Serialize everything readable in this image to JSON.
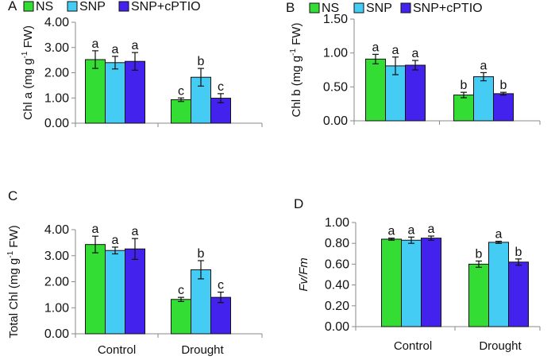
{
  "figure": {
    "legend": {
      "entries": [
        {
          "label": "NS",
          "color": "#33DD33"
        },
        {
          "label": "SNP",
          "color": "#44CCF5"
        },
        {
          "label": "SNP+cPTIO",
          "color": "#4422EE"
        }
      ]
    }
  },
  "chart_data": [
    {
      "panel": "A",
      "type": "bar",
      "ylabel": "Chl a (mg g-1 FW)",
      "ylabel_base": "Chl a (mg g",
      "ylabel_sup": "-1",
      "ylabel_tail": " FW)",
      "ylabel_italic": false,
      "ylim": [
        0,
        4
      ],
      "yticks": [
        "0.00",
        "1.00",
        "2.00",
        "3.00",
        "4.00"
      ],
      "categories": [
        "Control",
        "Drought"
      ],
      "show_xlabels": false,
      "legend": true,
      "series": [
        {
          "name": "NS",
          "values": [
            2.52,
            0.93
          ],
          "errors": [
            0.35,
            0.07
          ],
          "letters": [
            "a",
            "c"
          ]
        },
        {
          "name": "SNP",
          "values": [
            2.4,
            1.82
          ],
          "errors": [
            0.25,
            0.35
          ],
          "letters": [
            "a",
            "b"
          ]
        },
        {
          "name": "SNP+cPTIO",
          "values": [
            2.45,
            0.99
          ],
          "errors": [
            0.35,
            0.18
          ],
          "letters": [
            "a",
            "c"
          ]
        }
      ]
    },
    {
      "panel": "B",
      "type": "bar",
      "ylabel": "Chl b (mg g-1 FW)",
      "ylabel_base": "Chl b (mg g",
      "ylabel_sup": "-1",
      "ylabel_tail": " FW)",
      "ylabel_italic": false,
      "ylim": [
        0,
        1.5
      ],
      "yticks": [
        "0.00",
        "0.50",
        "1.00",
        "1.50"
      ],
      "categories": [
        "Control",
        "Drought"
      ],
      "show_xlabels": false,
      "legend": true,
      "series": [
        {
          "name": "NS",
          "values": [
            0.91,
            0.38
          ],
          "errors": [
            0.07,
            0.04
          ],
          "letters": [
            "a",
            "b"
          ]
        },
        {
          "name": "SNP",
          "values": [
            0.81,
            0.65
          ],
          "errors": [
            0.13,
            0.06
          ],
          "letters": [
            "a",
            "a"
          ]
        },
        {
          "name": "SNP+cPTIO",
          "values": [
            0.82,
            0.4
          ],
          "errors": [
            0.07,
            0.02
          ],
          "letters": [
            "a",
            "b"
          ]
        }
      ]
    },
    {
      "panel": "C",
      "type": "bar",
      "ylabel": "Total Chl (mg g-1 FW)",
      "ylabel_base": "Total Chl (mg g",
      "ylabel_sup": "-1",
      "ylabel_tail": " FW)",
      "ylabel_italic": false,
      "ylim": [
        0,
        4
      ],
      "yticks": [
        "0.00",
        "1.00",
        "2.00",
        "3.00",
        "4.00"
      ],
      "categories": [
        "Control",
        "Drought"
      ],
      "show_xlabels": true,
      "legend": false,
      "series": [
        {
          "name": "NS",
          "values": [
            3.43,
            1.32
          ],
          "errors": [
            0.32,
            0.08
          ],
          "letters": [
            "a",
            "c"
          ]
        },
        {
          "name": "SNP",
          "values": [
            3.2,
            2.46
          ],
          "errors": [
            0.13,
            0.35
          ],
          "letters": [
            "a",
            "b"
          ]
        },
        {
          "name": "SNP+cPTIO",
          "values": [
            3.26,
            1.4
          ],
          "errors": [
            0.4,
            0.2
          ],
          "letters": [
            "a",
            "c"
          ]
        }
      ]
    },
    {
      "panel": "D",
      "type": "bar",
      "ylabel": "Fv/Fm",
      "ylabel_base": "Fv/Fm",
      "ylabel_sup": "",
      "ylabel_tail": "",
      "ylabel_italic": true,
      "ylim": [
        0,
        1
      ],
      "yticks": [
        "0.00",
        "0.20",
        "0.40",
        "0.60",
        "0.80",
        "1.00"
      ],
      "categories": [
        "Control",
        "Drought"
      ],
      "show_xlabels": true,
      "legend": false,
      "series": [
        {
          "name": "NS",
          "values": [
            0.84,
            0.6
          ],
          "errors": [
            0.01,
            0.03
          ],
          "letters": [
            "a",
            "b"
          ]
        },
        {
          "name": "SNP",
          "values": [
            0.83,
            0.81
          ],
          "errors": [
            0.03,
            0.01
          ],
          "letters": [
            "a",
            "a"
          ]
        },
        {
          "name": "SNP+cPTIO",
          "values": [
            0.85,
            0.62
          ],
          "errors": [
            0.02,
            0.03
          ],
          "letters": [
            "a",
            "b"
          ]
        }
      ]
    }
  ]
}
